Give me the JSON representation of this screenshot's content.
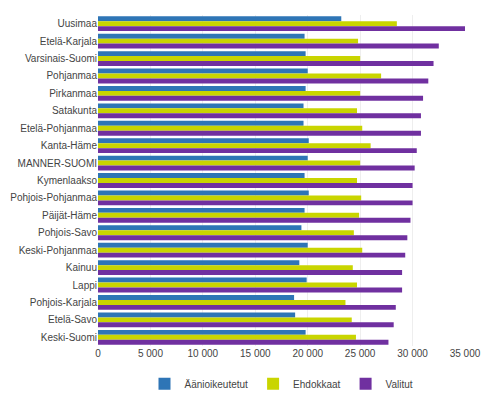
{
  "chart_data": {
    "type": "bar",
    "orientation": "horizontal",
    "categories": [
      "Uusimaa",
      "Etelä-Karjala",
      "Varsinais-Suomi",
      "Pohjanmaa",
      "Pirkanmaa",
      "Satakunta",
      "Etelä-Pohjanmaa",
      "Kanta-Häme",
      "MANNER-SUOMI",
      "Kymenlaakso",
      "Pohjois-Pohjanmaa",
      "Päijät-Häme",
      "Pohjois-Savo",
      "Keski-Pohjanmaa",
      "Kainuu",
      "Lappi",
      "Pohjois-Karjala",
      "Etelä-Savo",
      "Keski-Suomi"
    ],
    "series": [
      {
        "name": "Äänioikeutetut",
        "color": "#2e75b6",
        "values": [
          23200,
          19700,
          19800,
          20000,
          19800,
          19600,
          19600,
          20100,
          20000,
          19700,
          20100,
          19700,
          19400,
          20000,
          19200,
          19900,
          18700,
          18800,
          19800
        ]
      },
      {
        "name": "Ehdokkaat",
        "color": "#c9d500",
        "values": [
          28500,
          24800,
          25000,
          27000,
          25000,
          24700,
          25200,
          26000,
          25000,
          24700,
          25100,
          24900,
          24400,
          25200,
          24300,
          24700,
          23600,
          24200,
          24600
        ]
      },
      {
        "name": "Valitut",
        "color": "#7030a0",
        "values": [
          35000,
          32500,
          32000,
          31500,
          31000,
          30800,
          30800,
          30400,
          30200,
          30000,
          30000,
          29800,
          29500,
          29300,
          29000,
          29000,
          28400,
          28200,
          27700
        ]
      }
    ],
    "xlim": [
      0,
      35000
    ],
    "xticks": [
      0,
      {
        "value": 5000,
        "label": "5 000"
      },
      {
        "value": 10000,
        "label": "10 000"
      },
      {
        "value": 15000,
        "label": "15 000"
      },
      {
        "value": 20000,
        "label": "20 000"
      },
      {
        "value": 25000,
        "label": "25 000"
      },
      {
        "value": 30000,
        "label": "30 000"
      },
      {
        "value": 35000,
        "label": "35 000"
      }
    ],
    "grid": true,
    "legend": "bottom"
  }
}
